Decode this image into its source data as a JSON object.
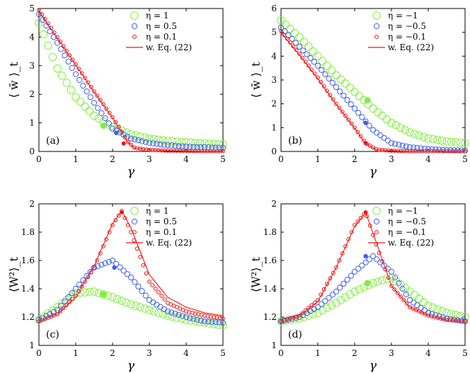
{
  "figure": {
    "x_label": "γ"
  },
  "colors": {
    "green": "#7ff03a",
    "blue": "#4060ee",
    "red": "#ee1010",
    "axis": "#000000"
  },
  "chart_data": [
    {
      "type": "scatter",
      "panel_label": "(a)",
      "ylabel": "⟨ w̄ ⟩_t",
      "xlim": [
        0,
        5
      ],
      "ylim": [
        0,
        5
      ],
      "xticks": [
        "0",
        "1",
        "2",
        "3",
        "4",
        "5"
      ],
      "yticks": [
        "0",
        "1",
        "2",
        "3",
        "4",
        "5"
      ],
      "legend": [
        "η = 1",
        "η = 0.5",
        "η = 0.1",
        "w. Eq. (22)"
      ],
      "legend_position": "top-right",
      "series": [
        {
          "name": "η = 1",
          "color": "green",
          "marker": "large",
          "x": [
            0,
            0.5,
            1,
            1.5,
            2,
            2.5,
            3,
            3.5,
            4,
            4.5,
            5
          ],
          "y": [
            4.5,
            2.9,
            1.9,
            1.25,
            0.85,
            0.6,
            0.45,
            0.37,
            0.32,
            0.28,
            0.25
          ],
          "highlight": [
            1.75,
            0.9
          ]
        },
        {
          "name": "η = 0.5",
          "color": "blue",
          "marker": "medium",
          "x": [
            0,
            0.5,
            1,
            1.5,
            2,
            2.5,
            3,
            3.5,
            4,
            4.5,
            5
          ],
          "y": [
            4.8,
            3.8,
            2.7,
            1.7,
            0.8,
            0.45,
            0.3,
            0.22,
            0.17,
            0.15,
            0.13
          ],
          "highlight": [
            2.1,
            0.65
          ]
        },
        {
          "name": "η = 0.1",
          "color": "red",
          "marker": "small",
          "x": [
            0,
            0.5,
            1,
            1.5,
            2,
            2.2,
            2.4,
            2.6,
            3,
            3.5,
            4,
            4.5,
            5
          ],
          "y": [
            4.95,
            4.0,
            3.05,
            2.1,
            1.2,
            0.8,
            0.35,
            0.12,
            0.06,
            0.03,
            0.02,
            0.01,
            0.01
          ],
          "highlight": [
            2.3,
            0.28
          ]
        }
      ],
      "fit_line": {
        "name": "w. Eq. (22)",
        "color": "red",
        "x": [
          0,
          0.5,
          1,
          1.5,
          2,
          2.2,
          2.4,
          2.6,
          3,
          3.5,
          4,
          4.5,
          5
        ],
        "y": [
          4.9,
          3.97,
          3.03,
          2.08,
          1.18,
          0.78,
          0.34,
          0.12,
          0.06,
          0.03,
          0.02,
          0.01,
          0.01
        ]
      }
    },
    {
      "type": "scatter",
      "panel_label": "(b)",
      "ylabel": "⟨ w̄ ⟩_t",
      "xlim": [
        0,
        5
      ],
      "ylim": [
        0,
        6
      ],
      "xticks": [
        "0",
        "1",
        "2",
        "3",
        "4",
        "5"
      ],
      "yticks": [
        "0",
        "1",
        "2",
        "3",
        "4",
        "5",
        "6"
      ],
      "legend": [
        "η = −1",
        "η = −0.5",
        "η = −0.1",
        "w. Eq. (22)"
      ],
      "legend_position": "top-right",
      "series": [
        {
          "name": "η = −1",
          "color": "green",
          "marker": "large",
          "x": [
            0,
            0.5,
            1,
            1.5,
            2,
            2.5,
            3,
            3.5,
            4,
            4.5,
            5
          ],
          "y": [
            5.5,
            4.8,
            4.0,
            3.2,
            2.5,
            1.8,
            1.2,
            0.8,
            0.55,
            0.42,
            0.35
          ],
          "highlight": [
            2.35,
            2.15
          ]
        },
        {
          "name": "η = −0.5",
          "color": "blue",
          "marker": "medium",
          "x": [
            0,
            0.5,
            1,
            1.5,
            2,
            2.5,
            3,
            3.5,
            4,
            4.5,
            5
          ],
          "y": [
            5.2,
            4.4,
            3.6,
            2.7,
            1.8,
            0.9,
            0.35,
            0.18,
            0.1,
            0.06,
            0.04
          ],
          "highlight": [
            2.3,
            1.2
          ]
        },
        {
          "name": "η = −0.1",
          "color": "red",
          "marker": "small",
          "x": [
            0,
            0.5,
            1,
            1.5,
            2,
            2.3,
            2.6,
            3,
            3.5,
            4,
            4.5,
            5
          ],
          "y": [
            5.05,
            4.1,
            3.1,
            2.0,
            1.0,
            0.35,
            0.08,
            0.03,
            0.01,
            0.01,
            0.01,
            0.01
          ],
          "highlight": [
            2.3,
            0.35
          ]
        }
      ],
      "fit_line": {
        "name": "w. Eq. (22)",
        "color": "red",
        "x": [
          0,
          0.5,
          1,
          1.5,
          2,
          2.3,
          2.6,
          3,
          3.5,
          4,
          4.5,
          5
        ],
        "y": [
          5.0,
          4.05,
          3.05,
          1.98,
          0.98,
          0.33,
          0.07,
          0.03,
          0.01,
          0.01,
          0.01,
          0.01
        ]
      }
    },
    {
      "type": "scatter",
      "panel_label": "(c)",
      "ylabel": "⟨W²⟩_t",
      "xlim": [
        0,
        5
      ],
      "ylim": [
        1,
        2
      ],
      "xticks": [
        "0",
        "1",
        "2",
        "3",
        "4",
        "5"
      ],
      "yticks": [
        "1",
        "1.2",
        "1.4",
        "1.6",
        "1.8",
        "2"
      ],
      "legend": [
        "η = 1",
        "η = 0.5",
        "η = 0.1",
        "w. Eq. (22)"
      ],
      "legend_position": "top-right",
      "series": [
        {
          "name": "η = 1",
          "color": "green",
          "marker": "large",
          "x": [
            0,
            0.5,
            1,
            1.5,
            2,
            2.5,
            3,
            3.5,
            4,
            4.5,
            5
          ],
          "y": [
            1.18,
            1.27,
            1.37,
            1.38,
            1.34,
            1.29,
            1.25,
            1.21,
            1.18,
            1.16,
            1.14
          ],
          "highlight": [
            1.75,
            1.36
          ]
        },
        {
          "name": "η = 0.5",
          "color": "blue",
          "marker": "medium",
          "x": [
            0,
            0.5,
            1,
            1.5,
            2,
            2.5,
            3,
            3.5,
            4,
            4.5,
            5
          ],
          "y": [
            1.18,
            1.25,
            1.4,
            1.55,
            1.6,
            1.48,
            1.32,
            1.24,
            1.2,
            1.17,
            1.16
          ],
          "highlight": [
            2.05,
            1.55
          ]
        },
        {
          "name": "η = 0.1",
          "color": "red",
          "marker": "small",
          "x": [
            0,
            0.5,
            1,
            1.5,
            2,
            2.25,
            2.5,
            3,
            3.5,
            4,
            4.5,
            5
          ],
          "y": [
            1.17,
            1.22,
            1.35,
            1.55,
            1.85,
            1.95,
            1.8,
            1.45,
            1.3,
            1.24,
            1.21,
            1.19
          ],
          "highlight": [
            2.25,
            1.94
          ]
        }
      ],
      "fit_line": {
        "name": "w. Eq. (22)",
        "color": "red",
        "x": [
          0,
          0.5,
          1,
          1.5,
          2,
          2.25,
          2.5,
          3,
          3.5,
          4,
          4.5,
          5
        ],
        "y": [
          1.17,
          1.22,
          1.34,
          1.56,
          1.86,
          1.95,
          1.83,
          1.5,
          1.34,
          1.27,
          1.23,
          1.21
        ]
      }
    },
    {
      "type": "scatter",
      "panel_label": "(d)",
      "ylabel": "⟨W²⟩_t",
      "xlim": [
        0,
        5
      ],
      "ylim": [
        1,
        2
      ],
      "xticks": [
        "0",
        "1",
        "2",
        "3",
        "4",
        "5"
      ],
      "yticks": [
        "1",
        "1.2",
        "1.4",
        "1.6",
        "1.8",
        "2"
      ],
      "legend": [
        "η = −1",
        "η = −0.5",
        "η = −0.1",
        "w. Eq. (22)"
      ],
      "legend_position": "top-right",
      "series": [
        {
          "name": "η = −1",
          "color": "green",
          "marker": "large",
          "x": [
            0,
            0.5,
            1,
            1.5,
            2,
            2.5,
            3,
            3.5,
            4,
            4.5,
            5
          ],
          "y": [
            1.17,
            1.19,
            1.23,
            1.3,
            1.38,
            1.44,
            1.48,
            1.38,
            1.28,
            1.23,
            1.2
          ],
          "highlight": [
            2.35,
            1.44
          ]
        },
        {
          "name": "η = −0.5",
          "color": "blue",
          "marker": "medium",
          "x": [
            0,
            0.5,
            1,
            1.5,
            2,
            2.5,
            3,
            3.5,
            4,
            4.5,
            5
          ],
          "y": [
            1.17,
            1.2,
            1.27,
            1.38,
            1.52,
            1.63,
            1.52,
            1.32,
            1.23,
            1.19,
            1.17
          ],
          "highlight": [
            2.3,
            1.63
          ]
        },
        {
          "name": "η = −0.1",
          "color": "red",
          "marker": "small",
          "x": [
            0,
            0.5,
            1,
            1.5,
            2,
            2.3,
            2.6,
            3,
            3.5,
            4,
            4.5,
            5
          ],
          "y": [
            1.17,
            1.21,
            1.32,
            1.55,
            1.85,
            1.94,
            1.7,
            1.42,
            1.27,
            1.21,
            1.18,
            1.17
          ],
          "highlight": [
            2.3,
            1.94
          ]
        }
      ],
      "fit_line": {
        "name": "w. Eq. (22)",
        "color": "red",
        "x": [
          0,
          0.5,
          1,
          1.5,
          2,
          2.3,
          2.6,
          3,
          3.5,
          4,
          4.5,
          5
        ],
        "y": [
          1.17,
          1.21,
          1.31,
          1.55,
          1.84,
          1.94,
          1.72,
          1.42,
          1.27,
          1.21,
          1.18,
          1.17
        ]
      }
    }
  ]
}
